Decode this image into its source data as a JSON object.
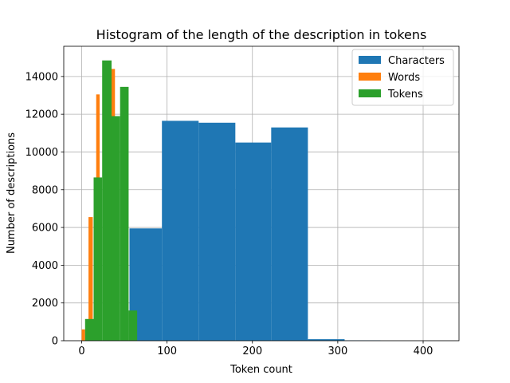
{
  "chart_data": {
    "type": "histogram",
    "title": "Histogram of the length of the description in tokens",
    "xlabel": "Token count",
    "ylabel": "Number of descriptions",
    "xlim": [
      -21,
      442
    ],
    "ylim": [
      0,
      15600
    ],
    "xticks": [
      0,
      100,
      200,
      300,
      400
    ],
    "yticks": [
      0,
      2000,
      4000,
      6000,
      8000,
      10000,
      12000,
      14000
    ],
    "grid": true,
    "legend_position": "top-right",
    "series": [
      {
        "name": "Characters",
        "color": "#1f77b4",
        "bins": [
          {
            "x0": 14,
            "x1": 56,
            "value": 0
          },
          {
            "x0": 56,
            "x1": 94,
            "value": 5950
          },
          {
            "x0": 94,
            "x1": 137,
            "value": 11650
          },
          {
            "x0": 137,
            "x1": 180,
            "value": 11550
          },
          {
            "x0": 180,
            "x1": 222,
            "value": 10500
          },
          {
            "x0": 222,
            "x1": 265,
            "value": 11300
          },
          {
            "x0": 265,
            "x1": 308,
            "value": 80
          },
          {
            "x0": 308,
            "x1": 350,
            "value": 20
          },
          {
            "x0": 350,
            "x1": 393,
            "value": 0
          },
          {
            "x0": 393,
            "x1": 436,
            "value": 0
          }
        ]
      },
      {
        "name": "Words",
        "color": "#ff7f0e",
        "bins": [
          {
            "x0": 0,
            "x1": 4,
            "value": 600
          },
          {
            "x0": 4,
            "x1": 8,
            "value": 0
          },
          {
            "x0": 8,
            "x1": 13,
            "value": 6550
          },
          {
            "x0": 13,
            "x1": 17,
            "value": 0
          },
          {
            "x0": 17,
            "x1": 21,
            "value": 13050
          },
          {
            "x0": 21,
            "x1": 26,
            "value": 0
          },
          {
            "x0": 26,
            "x1": 30,
            "value": 13850
          },
          {
            "x0": 30,
            "x1": 34,
            "value": 0
          },
          {
            "x0": 34,
            "x1": 39,
            "value": 14400
          },
          {
            "x0": 39,
            "x1": 43,
            "value": 3500
          }
        ]
      },
      {
        "name": "Tokens",
        "color": "#2ca02c",
        "bins": [
          {
            "x0": 4,
            "x1": 14,
            "value": 1150
          },
          {
            "x0": 14,
            "x1": 24,
            "value": 8650
          },
          {
            "x0": 24,
            "x1": 35,
            "value": 14850
          },
          {
            "x0": 35,
            "x1": 45,
            "value": 11900
          },
          {
            "x0": 45,
            "x1": 55,
            "value": 13450
          },
          {
            "x0": 55,
            "x1": 65,
            "value": 1600
          }
        ]
      }
    ]
  }
}
